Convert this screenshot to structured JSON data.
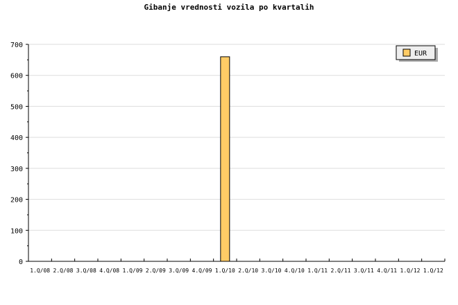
{
  "chart_data": {
    "type": "bar",
    "title": "Gibanje vrednosti vozila po kvartalih",
    "categories": [
      "1.Q/08",
      "2.Q/08",
      "3.Q/08",
      "4.Q/08",
      "1.Q/09",
      "2.Q/09",
      "3.Q/09",
      "4.Q/09",
      "1.Q/10",
      "2.Q/10",
      "3.Q/10",
      "4.Q/10",
      "1.Q/11",
      "2.Q/11",
      "3.Q/11",
      "4.Q/11",
      "1.Q/12",
      "1.Q/12"
    ],
    "series": [
      {
        "name": "EUR",
        "values": [
          0,
          0,
          0,
          0,
          0,
          0,
          0,
          0,
          660,
          0,
          0,
          0,
          0,
          0,
          0,
          0,
          0,
          0
        ],
        "color": "#ffcc66"
      }
    ],
    "ylim": [
      0,
      700
    ],
    "yticks": [
      0,
      100,
      200,
      300,
      400,
      500,
      600,
      700
    ],
    "grid": true,
    "legend": "top-right"
  }
}
